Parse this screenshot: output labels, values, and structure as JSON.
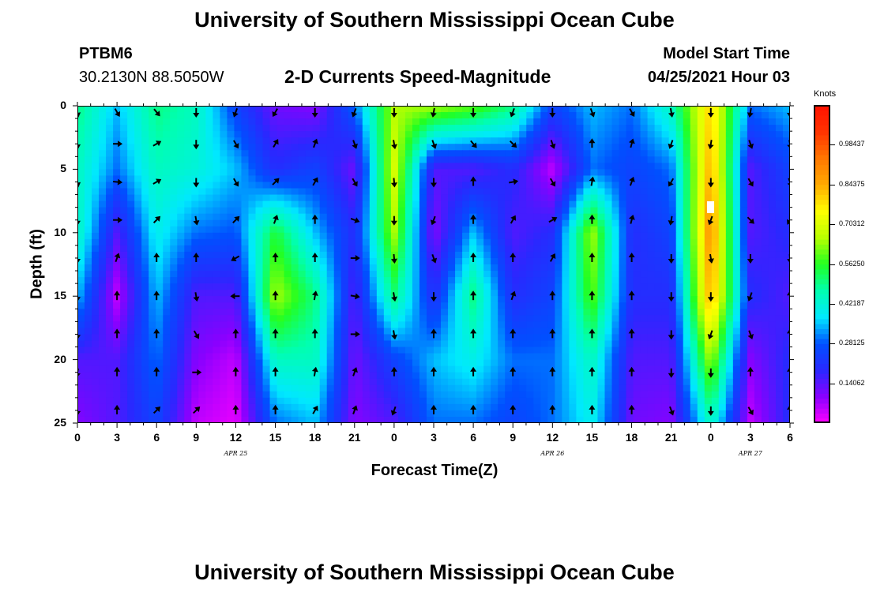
{
  "header": {
    "title": "University of Southern Mississippi Ocean Cube",
    "station": "PTBM6",
    "location": "30.2130N  88.5050W",
    "plot_title": "2-D Currents Speed-Magnitude",
    "model_start_label": "Model Start Time",
    "model_start_value": "04/25/2021 Hour 03"
  },
  "footer": {
    "title": "University of Southern Mississippi Ocean Cube"
  },
  "chart_data": {
    "type": "heatmap",
    "title": "2-D Currents Speed-Magnitude",
    "xlabel": "Forecast Time(Z)",
    "ylabel": "Depth (ft)",
    "x_tick_labels": [
      "0",
      "3",
      "6",
      "9",
      "12",
      "15",
      "18",
      "21",
      "0",
      "3",
      "6",
      "9",
      "12",
      "15",
      "18",
      "21",
      "0",
      "3",
      "6"
    ],
    "x_range_hours": [
      0,
      54
    ],
    "date_labels": [
      {
        "text": "APR  25",
        "hour": 12
      },
      {
        "text": "APR  26",
        "hour": 36
      },
      {
        "text": "APR  27",
        "hour": 51
      }
    ],
    "y_ticks": [
      0,
      5,
      10,
      15,
      20,
      25
    ],
    "ylim": [
      0,
      25
    ],
    "colorbar": {
      "units": "Knots",
      "range": [
        0.0,
        1.125
      ],
      "tick_values": [
        0.98437,
        0.84375,
        0.70312,
        0.5625,
        0.42187,
        0.28125,
        0.14062
      ],
      "tick_labels": [
        "0.98437",
        "0.84375",
        "0.70312",
        "0.56250",
        "0.42187",
        "0.28125",
        "0.14062"
      ],
      "colors": [
        "#ff00ff",
        "#8a00ff",
        "#2a28ff",
        "#0050ff",
        "#00e8ff",
        "#00ffb0",
        "#22ff22",
        "#b8ff00",
        "#ffff00",
        "#ffaa00",
        "#ff7700",
        "#ff3300",
        "#ff1100"
      ]
    },
    "speed_hours": [
      0,
      3,
      6,
      9,
      12,
      15,
      18,
      21,
      24,
      27,
      30,
      33,
      36,
      39,
      42,
      45,
      48,
      51,
      54
    ],
    "speed_depths": [
      0,
      5,
      10,
      15,
      20,
      25
    ],
    "speed_knots": [
      [
        0.5,
        0.35,
        0.5,
        0.45,
        0.25,
        0.12,
        0.1,
        0.3,
        0.65,
        0.65,
        0.6,
        0.5,
        0.25,
        0.35,
        0.3,
        0.45,
        0.8,
        0.3,
        0.35
      ],
      [
        0.45,
        0.3,
        0.45,
        0.42,
        0.35,
        0.2,
        0.25,
        0.12,
        0.7,
        0.15,
        0.15,
        0.2,
        0.05,
        0.3,
        0.25,
        0.3,
        0.85,
        0.15,
        0.25
      ],
      [
        0.45,
        0.15,
        0.4,
        0.3,
        0.28,
        0.55,
        0.35,
        0.2,
        0.65,
        0.1,
        0.35,
        0.15,
        0.2,
        0.65,
        0.2,
        0.25,
        0.9,
        0.15,
        0.2
      ],
      [
        0.35,
        0.05,
        0.35,
        0.15,
        0.15,
        0.65,
        0.5,
        0.15,
        0.5,
        0.2,
        0.5,
        0.2,
        0.25,
        0.6,
        0.2,
        0.2,
        0.85,
        0.2,
        0.15
      ],
      [
        0.15,
        0.15,
        0.3,
        0.1,
        0.05,
        0.45,
        0.45,
        0.12,
        0.25,
        0.35,
        0.4,
        0.3,
        0.3,
        0.45,
        0.15,
        0.15,
        0.65,
        0.1,
        0.2
      ],
      [
        0.1,
        0.15,
        0.25,
        0.05,
        0.02,
        0.3,
        0.35,
        0.1,
        0.15,
        0.3,
        0.3,
        0.25,
        0.3,
        0.4,
        0.12,
        0.1,
        0.45,
        0.05,
        0.2
      ]
    ],
    "vector_hours": [
      0,
      3,
      6,
      9,
      12,
      15,
      18,
      21,
      24,
      27,
      30,
      33,
      36,
      39,
      42,
      45,
      48,
      51,
      54
    ],
    "vector_depths": [
      0.5,
      3,
      6,
      9,
      12,
      15,
      18,
      21,
      24
    ],
    "vector_dir_deg": [
      [
        170,
        150,
        140,
        180,
        200,
        210,
        180,
        200,
        180,
        190,
        180,
        200,
        180,
        160,
        150,
        170,
        180,
        190,
        180
      ],
      [
        175,
        90,
        60,
        180,
        150,
        30,
        20,
        160,
        170,
        160,
        140,
        135,
        160,
        0,
        15,
        200,
        190,
        160,
        170
      ],
      [
        170,
        95,
        60,
        180,
        150,
        45,
        30,
        150,
        175,
        180,
        0,
        80,
        150,
        10,
        20,
        210,
        180,
        150,
        160
      ],
      [
        180,
        90,
        45,
        170,
        45,
        20,
        0,
        110,
        180,
        200,
        0,
        30,
        60,
        0,
        15,
        190,
        200,
        135,
        210
      ],
      [
        180,
        20,
        0,
        0,
        240,
        0,
        0,
        90,
        175,
        160,
        0,
        0,
        30,
        0,
        0,
        180,
        170,
        180,
        175
      ],
      [
        180,
        0,
        0,
        170,
        270,
        0,
        10,
        100,
        170,
        180,
        0,
        20,
        0,
        0,
        0,
        180,
        180,
        200,
        0
      ],
      [
        180,
        0,
        0,
        150,
        0,
        0,
        0,
        90,
        170,
        0,
        0,
        0,
        0,
        0,
        0,
        180,
        200,
        160,
        0
      ],
      [
        190,
        0,
        0,
        90,
        0,
        0,
        10,
        20,
        0,
        0,
        0,
        0,
        0,
        0,
        0,
        180,
        180,
        0,
        0
      ],
      [
        180,
        0,
        45,
        45,
        0,
        0,
        30,
        20,
        200,
        0,
        0,
        0,
        0,
        0,
        0,
        160,
        180,
        150,
        0
      ]
    ]
  }
}
